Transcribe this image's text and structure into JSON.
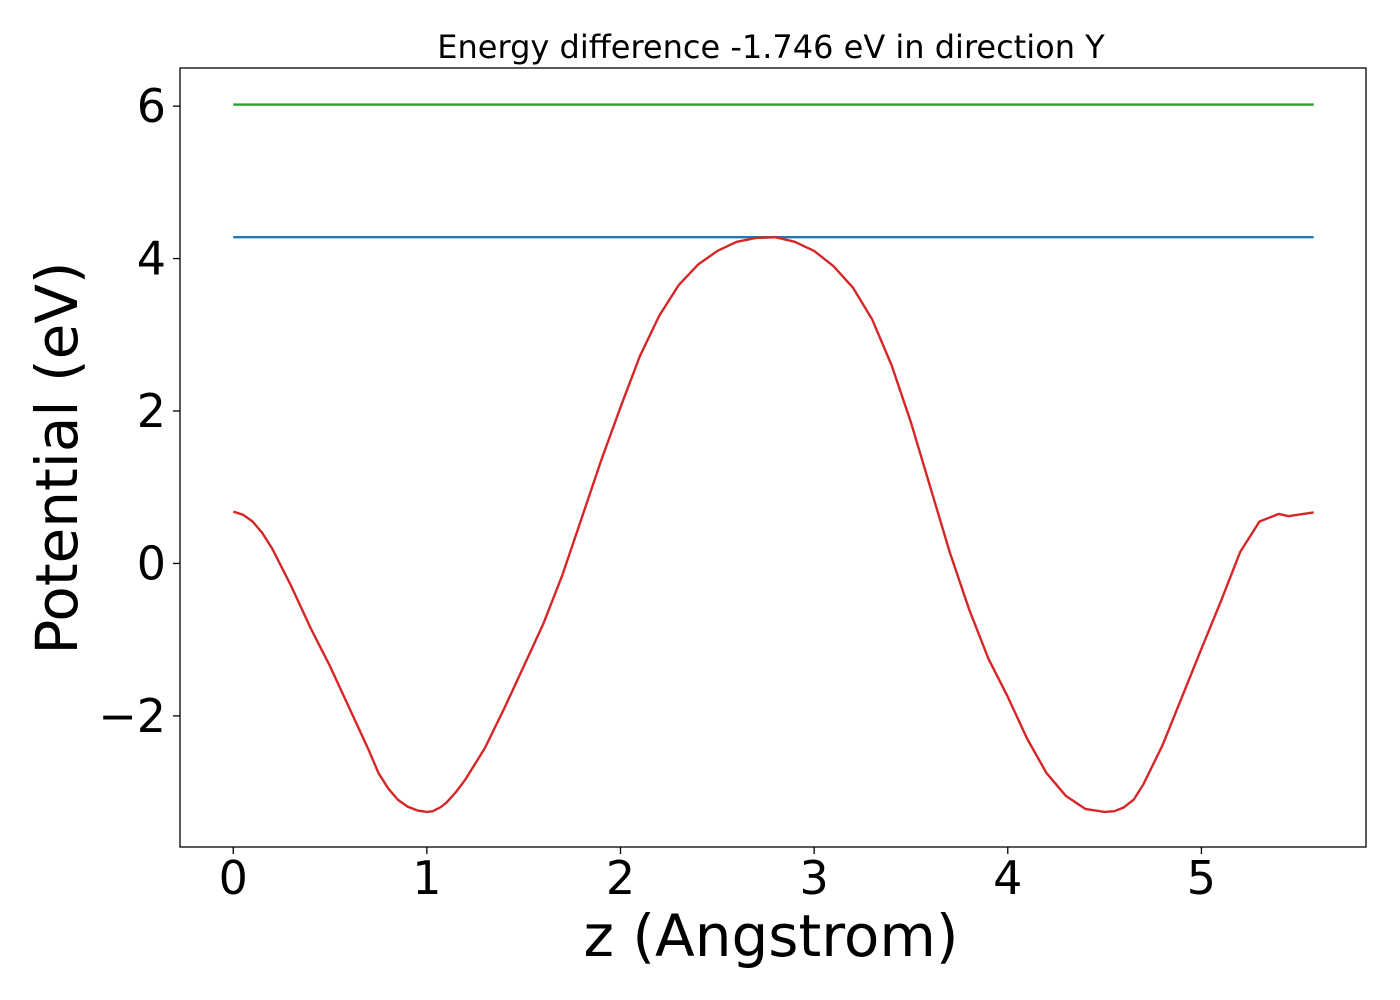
{
  "chart_data": {
    "type": "line",
    "title": "Energy difference -1.746 eV in direction Y",
    "xlabel": "z (Angstrom)",
    "ylabel": "Potential (eV)",
    "xlim": [
      -0.275,
      5.85
    ],
    "ylim": [
      -3.72,
      6.5
    ],
    "xticks": [
      0,
      1,
      2,
      3,
      4,
      5
    ],
    "xtick_labels": [
      "0",
      "1",
      "2",
      "3",
      "4",
      "5"
    ],
    "yticks": [
      -2,
      0,
      2,
      4,
      6
    ],
    "ytick_labels": [
      "−2",
      "0",
      "2",
      "4",
      "6"
    ],
    "grid": false,
    "legend": "none",
    "series": [
      {
        "color": "#2ca02c",
        "x": [
          0,
          5.58
        ],
        "y": [
          6.02,
          6.02
        ]
      },
      {
        "color": "#1f77b4",
        "x": [
          0,
          5.58
        ],
        "y": [
          4.28,
          4.28
        ]
      },
      {
        "color": "#d62728",
        "x": [
          0.0,
          0.05,
          0.1,
          0.15,
          0.2,
          0.3,
          0.4,
          0.5,
          0.6,
          0.7,
          0.75,
          0.8,
          0.85,
          0.9,
          0.95,
          1.0,
          1.03,
          1.07,
          1.1,
          1.15,
          1.2,
          1.3,
          1.4,
          1.5,
          1.6,
          1.7,
          1.8,
          1.9,
          2.0,
          2.1,
          2.2,
          2.3,
          2.4,
          2.5,
          2.6,
          2.7,
          2.8,
          2.9,
          3.0,
          3.1,
          3.2,
          3.3,
          3.4,
          3.5,
          3.6,
          3.7,
          3.8,
          3.9,
          4.0,
          4.1,
          4.2,
          4.3,
          4.4,
          4.5,
          4.55,
          4.6,
          4.65,
          4.7,
          4.8,
          4.9,
          5.0,
          5.1,
          5.2,
          5.3,
          5.4,
          5.45,
          5.5,
          5.58
        ],
        "y": [
          0.68,
          0.64,
          0.55,
          0.4,
          0.2,
          -0.3,
          -0.85,
          -1.35,
          -1.9,
          -2.45,
          -2.75,
          -2.95,
          -3.1,
          -3.19,
          -3.24,
          -3.26,
          -3.25,
          -3.2,
          -3.14,
          -3.0,
          -2.83,
          -2.42,
          -1.9,
          -1.35,
          -0.8,
          -0.15,
          0.6,
          1.35,
          2.05,
          2.72,
          3.25,
          3.65,
          3.92,
          4.1,
          4.22,
          4.27,
          4.28,
          4.22,
          4.1,
          3.9,
          3.62,
          3.2,
          2.6,
          1.85,
          1.0,
          0.15,
          -0.6,
          -1.25,
          -1.75,
          -2.3,
          -2.75,
          -3.05,
          -3.22,
          -3.26,
          -3.25,
          -3.2,
          -3.1,
          -2.9,
          -2.38,
          -1.75,
          -1.12,
          -0.5,
          0.15,
          0.55,
          0.65,
          0.62,
          0.64,
          0.67
        ]
      }
    ]
  }
}
